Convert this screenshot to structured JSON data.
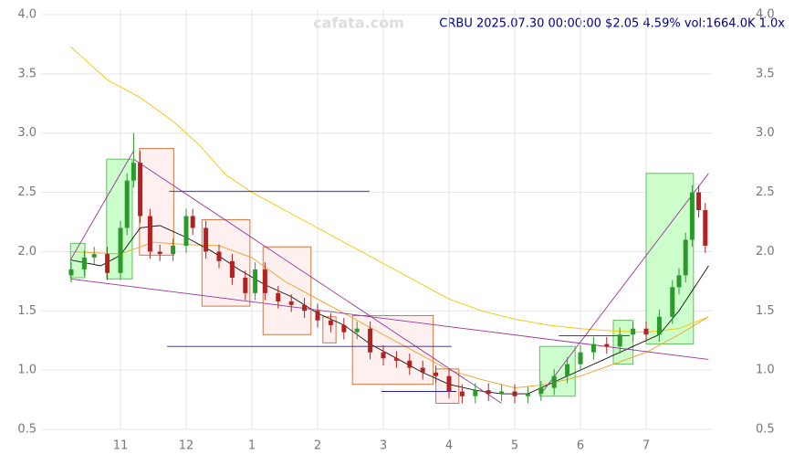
{
  "chart_data": {
    "type": "candlestick",
    "title": "CRBU 2025.07.30 00:00:00 $2.05 4.59% vol:1664.0K 1.0x",
    "watermark": "cafata.com",
    "xlim": [
      9.8,
      20.0
    ],
    "xticks": [
      11,
      12,
      {
        "value": 13,
        "label": "1"
      },
      {
        "value": 14,
        "label": "2"
      },
      {
        "value": 15,
        "label": "3"
      },
      {
        "value": 16,
        "label": "4"
      },
      {
        "value": 17,
        "label": "5"
      },
      {
        "value": 18,
        "label": "6"
      },
      {
        "value": 19,
        "label": "7"
      }
    ],
    "ylim": [
      0.5,
      4.0
    ],
    "yticks": [
      {
        "value": 0.5,
        "label": "0.5"
      },
      {
        "value": 1,
        "label": "1.0"
      },
      {
        "value": 1.5,
        "label": "1.5"
      },
      {
        "value": 2,
        "label": "2.0"
      },
      {
        "value": 2.5,
        "label": "2.5"
      },
      {
        "value": 3,
        "label": "3.0"
      },
      {
        "value": 3.5,
        "label": "3.5"
      },
      {
        "value": 4,
        "label": "4.0"
      }
    ],
    "grid": true,
    "up_color": "#2a9a2a",
    "down_color": "#b22222",
    "x": [
      10.25,
      10.45,
      10.6,
      10.8,
      11.0,
      11.1,
      11.2,
      11.3,
      11.45,
      11.6,
      11.8,
      12.0,
      12.1,
      12.3,
      12.5,
      12.7,
      12.9,
      13.05,
      13.2,
      13.4,
      13.6,
      13.8,
      14.0,
      14.2,
      14.4,
      14.6,
      14.8,
      15.0,
      15.2,
      15.4,
      15.6,
      15.8,
      16.0,
      16.2,
      16.4,
      16.6,
      16.8,
      17.0,
      17.2,
      17.4,
      17.6,
      17.8,
      18.0,
      18.2,
      18.4,
      18.6,
      18.8,
      19.0,
      19.2,
      19.4,
      19.5,
      19.6,
      19.7,
      19.8,
      19.9
    ],
    "open": [
      1.8,
      1.85,
      1.95,
      1.98,
      1.82,
      2.2,
      2.6,
      2.75,
      2.3,
      2.0,
      1.98,
      2.05,
      2.3,
      2.2,
      2.0,
      1.92,
      1.78,
      1.65,
      1.85,
      1.65,
      1.58,
      1.55,
      1.5,
      1.42,
      1.38,
      1.32,
      1.35,
      1.15,
      1.1,
      1.08,
      1.02,
      0.98,
      0.95,
      0.82,
      0.78,
      0.83,
      0.8,
      0.82,
      0.78,
      0.8,
      0.85,
      0.95,
      1.05,
      1.15,
      1.22,
      1.2,
      1.3,
      1.35,
      1.3,
      1.45,
      1.7,
      1.8,
      2.1,
      2.5,
      2.35
    ],
    "high": [
      1.91,
      2.01,
      2.04,
      2.04,
      2.26,
      2.66,
      3.0,
      2.85,
      2.36,
      2.06,
      2.11,
      2.36,
      2.36,
      2.26,
      2.06,
      1.98,
      1.84,
      1.91,
      1.91,
      1.71,
      1.64,
      1.61,
      1.56,
      1.48,
      1.44,
      1.41,
      1.41,
      1.21,
      1.16,
      1.14,
      1.08,
      1.04,
      1.01,
      0.88,
      0.89,
      0.89,
      0.88,
      0.88,
      0.86,
      0.91,
      1.01,
      1.11,
      1.21,
      1.28,
      1.28,
      1.36,
      1.41,
      1.41,
      1.51,
      1.76,
      1.86,
      2.16,
      2.56,
      2.56,
      2.41
    ],
    "low": [
      1.74,
      1.79,
      1.89,
      1.76,
      1.76,
      2.14,
      2.54,
      2.24,
      1.94,
      1.92,
      1.92,
      1.99,
      2.14,
      1.94,
      1.86,
      1.72,
      1.59,
      1.59,
      1.59,
      1.52,
      1.49,
      1.44,
      1.36,
      1.32,
      1.26,
      1.26,
      1.09,
      1.04,
      1.02,
      0.96,
      0.92,
      0.89,
      0.76,
      0.72,
      0.72,
      0.74,
      0.74,
      0.72,
      0.72,
      0.74,
      0.79,
      0.89,
      0.99,
      1.09,
      1.14,
      1.14,
      1.24,
      1.24,
      1.24,
      1.39,
      1.64,
      1.74,
      2.04,
      2.29,
      1.99
    ],
    "close": [
      1.85,
      1.95,
      1.98,
      1.82,
      2.2,
      2.6,
      2.75,
      2.3,
      2.0,
      1.98,
      2.05,
      2.3,
      2.2,
      2.0,
      1.92,
      1.78,
      1.65,
      1.85,
      1.65,
      1.58,
      1.55,
      1.5,
      1.42,
      1.38,
      1.32,
      1.35,
      1.15,
      1.1,
      1.08,
      1.02,
      0.98,
      0.95,
      0.82,
      0.78,
      0.83,
      0.8,
      0.82,
      0.78,
      0.8,
      0.85,
      0.95,
      1.05,
      1.15,
      1.22,
      1.2,
      1.3,
      1.35,
      1.3,
      1.45,
      1.7,
      1.8,
      2.1,
      2.5,
      2.35,
      2.05
    ],
    "boxes": [
      {
        "x0": 10.24,
        "x1": 10.46,
        "y0": 1.78,
        "y1": 2.07,
        "color": "green"
      },
      {
        "x0": 10.79,
        "x1": 11.18,
        "y0": 1.77,
        "y1": 2.78,
        "color": "green"
      },
      {
        "x0": 11.29,
        "x1": 11.81,
        "y0": 1.97,
        "y1": 2.87,
        "color": "red"
      },
      {
        "x0": 12.24,
        "x1": 12.97,
        "y0": 1.54,
        "y1": 2.27,
        "color": "red"
      },
      {
        "x0": 13.17,
        "x1": 13.9,
        "y0": 1.3,
        "y1": 2.04,
        "color": "red"
      },
      {
        "x0": 14.08,
        "x1": 14.28,
        "y0": 1.23,
        "y1": 1.45,
        "color": "red"
      },
      {
        "x0": 14.53,
        "x1": 15.76,
        "y0": 0.88,
        "y1": 1.46,
        "color": "red"
      },
      {
        "x0": 15.8,
        "x1": 16.15,
        "y0": 0.72,
        "y1": 1.01,
        "color": "red"
      },
      {
        "x0": 17.38,
        "x1": 17.92,
        "y0": 0.78,
        "y1": 1.2,
        "color": "green"
      },
      {
        "x0": 18.5,
        "x1": 18.8,
        "y0": 1.05,
        "y1": 1.42,
        "color": "green"
      },
      {
        "x0": 19.0,
        "x1": 19.72,
        "y0": 1.22,
        "y1": 2.66,
        "color": "green"
      }
    ],
    "lines": [
      {
        "color": "#f5c400",
        "x": [
          10.24,
          10.8,
          11.3,
          11.8,
          12.2,
          12.6,
          13.0,
          13.5,
          14.0,
          14.5,
          15.0,
          15.5,
          16.0,
          16.5,
          17.0,
          17.5,
          18.0,
          18.5,
          19.0,
          19.5,
          19.95
        ],
        "values": [
          3.73,
          3.45,
          3.3,
          3.1,
          2.9,
          2.65,
          2.5,
          2.35,
          2.2,
          2.05,
          1.9,
          1.75,
          1.6,
          1.5,
          1.43,
          1.38,
          1.35,
          1.33,
          1.32,
          1.35,
          1.45
        ]
      },
      {
        "color": "#f0a020",
        "x": [
          10.24,
          11.0,
          11.5,
          12.0,
          12.5,
          13.0,
          13.5,
          14.0,
          14.5,
          15.0,
          15.5,
          16.0,
          16.5,
          17.0,
          17.5,
          18.0,
          18.5,
          19.0,
          19.5,
          19.95
        ],
        "values": [
          2.0,
          1.98,
          2.08,
          2.06,
          2.05,
          1.95,
          1.75,
          1.6,
          1.45,
          1.3,
          1.15,
          1.0,
          0.92,
          0.85,
          0.88,
          0.95,
          1.05,
          1.15,
          1.3,
          1.45
        ]
      },
      {
        "color": "#111111",
        "x": [
          10.24,
          10.7,
          11.0,
          11.3,
          11.6,
          12.0,
          12.4,
          12.8,
          13.2,
          13.6,
          14.0,
          14.4,
          14.8,
          15.2,
          15.6,
          16.0,
          16.4,
          16.8,
          17.2,
          17.6,
          18.0,
          18.4,
          18.8,
          19.2,
          19.5,
          19.95
        ],
        "values": [
          1.93,
          1.88,
          1.97,
          2.2,
          2.22,
          2.12,
          2.0,
          1.85,
          1.72,
          1.62,
          1.48,
          1.38,
          1.22,
          1.1,
          0.98,
          0.88,
          0.83,
          0.8,
          0.8,
          0.9,
          1.0,
          1.1,
          1.2,
          1.3,
          1.5,
          1.88
        ]
      },
      {
        "color": "#993399",
        "x": [
          10.24,
          19.95
        ],
        "values": [
          1.77,
          1.09
        ]
      },
      {
        "color": "#993399",
        "x": [
          11.2,
          16.8
        ],
        "values": [
          2.78,
          0.72
        ]
      },
      {
        "color": "#993399",
        "x": [
          17.4,
          19.95
        ],
        "values": [
          0.8,
          2.66
        ]
      },
      {
        "color": "#993399",
        "x": [
          10.24,
          11.2
        ],
        "values": [
          1.93,
          2.85
        ]
      },
      {
        "color": "#2222aa",
        "x": [
          11.74,
          14.79
        ],
        "values": [
          2.51,
          2.51
        ]
      },
      {
        "color": "#2222aa",
        "x": [
          11.71,
          16.04
        ],
        "values": [
          1.2,
          1.2
        ]
      },
      {
        "color": "#2222aa",
        "x": [
          14.97,
          16.11
        ],
        "values": [
          0.82,
          0.82
        ]
      },
      {
        "color": "#2222aa",
        "x": [
          17.67,
          18.75
        ],
        "values": [
          1.29,
          1.29
        ]
      }
    ]
  }
}
